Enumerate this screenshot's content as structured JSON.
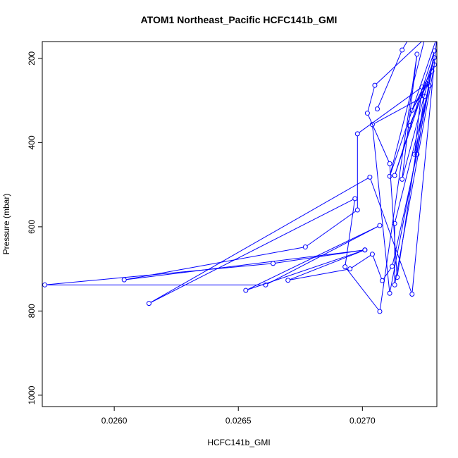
{
  "chart_data": {
    "type": "line",
    "title": "ATOM1 Northeast_Pacific HCFC141b_GMI",
    "xlabel": "HCFC141b_GMI",
    "ylabel": "Pressure (mbar)",
    "xlim": [
      0.02571,
      0.0273
    ],
    "ylim": [
      1027,
      160
    ],
    "y_reversed": true,
    "x_ticks": [
      0.026,
      0.0265,
      0.027
    ],
    "x_tick_labels": [
      "0.0260",
      "0.0265",
      "0.0270"
    ],
    "y_ticks": [
      200,
      400,
      600,
      800,
      1000
    ],
    "y_tick_labels": [
      "200",
      "400",
      "600",
      "800",
      "1000"
    ],
    "grid": false,
    "series": [
      {
        "color": "#0000ff",
        "marker": "open-circle",
        "x": [
          0.02732,
          0.02705,
          0.02702,
          0.02711,
          0.02714,
          0.02725,
          0.02704,
          0.02711,
          0.02727,
          0.02713,
          0.02713,
          0.02729,
          0.0272,
          0.02726,
          0.02719,
          0.02728,
          0.02721,
          0.02724,
          0.02698,
          0.02698,
          0.02677,
          0.02604,
          0.02701,
          0.02664,
          0.02572,
          0.02661,
          0.02707,
          0.02653,
          0.02701,
          0.0267,
          0.02695,
          0.02704,
          0.02708,
          0.02712,
          0.02722,
          0.02729,
          0.02713,
          0.02729,
          0.02716,
          0.02722,
          0.02707,
          0.02693,
          0.02697,
          0.02614,
          0.02703,
          0.0272,
          0.0273,
          0.02711,
          0.0273,
          0.02716,
          0.02706
        ],
        "y": [
          115,
          264,
          330,
          450,
          720,
          290,
          357,
          758,
          265,
          592,
          738,
          215,
          323,
          260,
          360,
          230,
          428,
          268,
          379,
          560,
          648,
          726,
          655,
          687,
          738,
          738,
          597,
          751,
          655,
          727,
          700,
          665,
          728,
          694,
          428,
          182,
          478,
          198,
          487,
          190,
          801,
          695,
          533,
          782,
          482,
          760,
          150,
          480,
          40,
          180,
          320
        ]
      }
    ]
  }
}
